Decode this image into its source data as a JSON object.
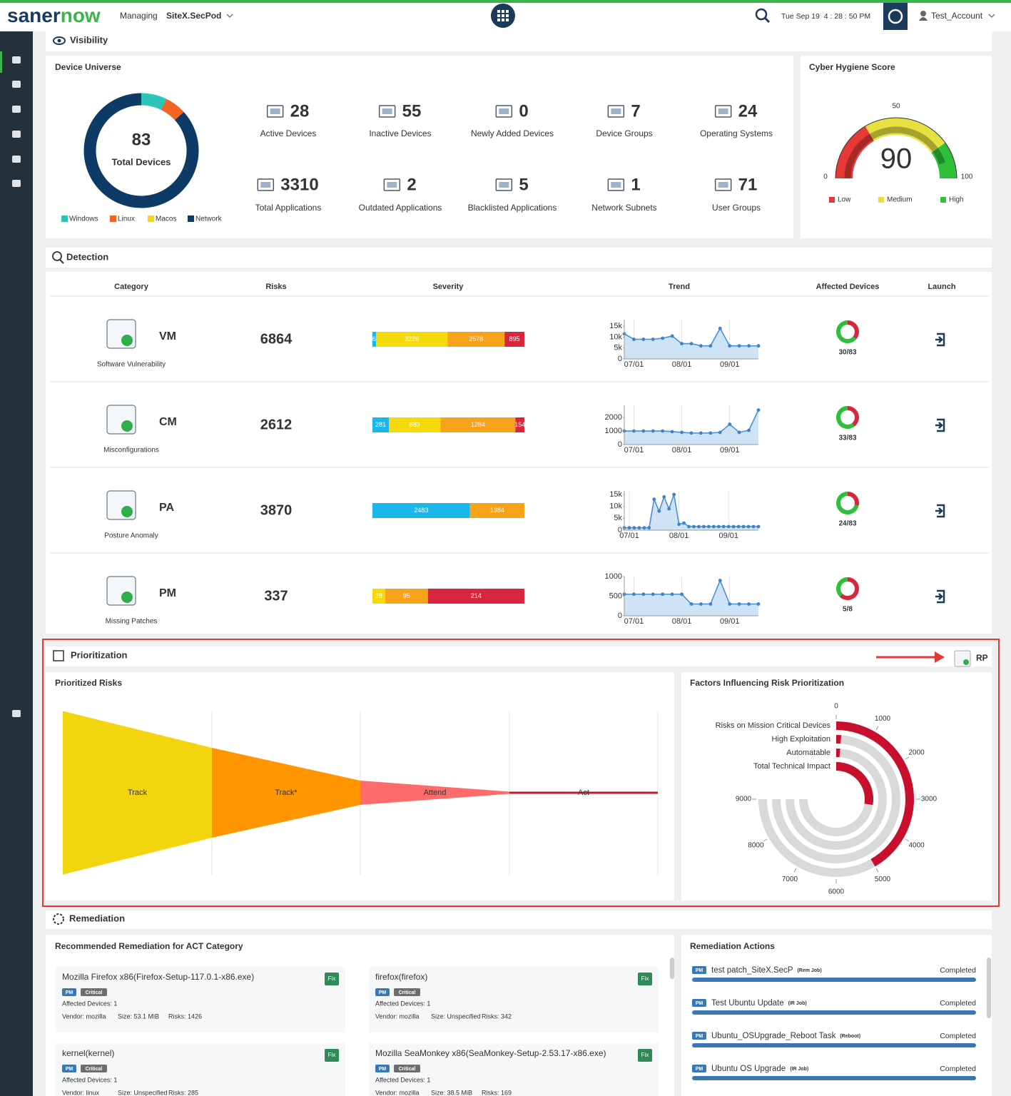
{
  "header": {
    "logo": [
      "saner",
      "now"
    ],
    "managing": "Managing",
    "site": "SiteX.SecPod",
    "datetime": "Tue Sep 19  4 : 28 : 50 PM",
    "account": "Test_Account"
  },
  "visibility": {
    "title": "Visibility",
    "device_universe": {
      "title": "Device Universe",
      "type": "donut",
      "total": 83,
      "total_label": "Total Devices",
      "series": [
        {
          "name": "Windows",
          "color": "#2ec4b6",
          "value": 6
        },
        {
          "name": "Linux",
          "color": "#f26522",
          "value": 5
        },
        {
          "name": "Macos",
          "color": "#f5d327",
          "value": 0
        },
        {
          "name": "Network",
          "color": "#0d3b66",
          "value": 72
        }
      ]
    },
    "stats": [
      {
        "value": 28,
        "label": "Active Devices"
      },
      {
        "value": 55,
        "label": "Inactive Devices"
      },
      {
        "value": 0,
        "label": "Newly Added Devices"
      },
      {
        "value": 7,
        "label": "Device Groups"
      },
      {
        "value": 24,
        "label": "Operating Systems"
      },
      {
        "value": 3310,
        "label": "Total Applications"
      },
      {
        "value": 2,
        "label": "Outdated Applications"
      },
      {
        "value": 5,
        "label": "Blacklisted Applications"
      },
      {
        "value": 1,
        "label": "Network Subnets"
      },
      {
        "value": 71,
        "label": "User Groups"
      }
    ],
    "cyber_hygiene": {
      "title": "Cyber Hygiene Score",
      "type": "gauge",
      "value": 90,
      "ylim": [
        0,
        100
      ],
      "yticks": [
        0,
        50,
        100
      ],
      "bands": [
        {
          "name": "Low",
          "color": "#e53935",
          "to": 33
        },
        {
          "name": "Medium",
          "color": "#e6e040",
          "to": 80
        },
        {
          "name": "High",
          "color": "#2fbf3a",
          "to": 100
        }
      ]
    }
  },
  "detection": {
    "title": "Detection",
    "columns": [
      "Category",
      "Risks",
      "Severity",
      "Trend",
      "Affected Devices",
      "Launch"
    ],
    "rows": [
      {
        "code": "VM",
        "name": "Software Vulnerability",
        "risks": 6864,
        "severity": {
          "type": "stacked-bar",
          "segments": [
            {
              "value": 165,
              "color": "#1ab7ea"
            },
            {
              "value": 3226,
              "color": "#f5d90a"
            },
            {
              "value": 2578,
              "color": "#f7a21b"
            },
            {
              "value": 895,
              "color": "#d7263d"
            }
          ]
        },
        "trend": {
          "type": "area",
          "categories": [
            null,
            "07/01",
            null,
            null,
            null,
            null,
            "08/01",
            null,
            null,
            null,
            null,
            "09/01",
            null,
            null,
            null
          ],
          "values": [
            11500,
            9000,
            9000,
            9000,
            9500,
            10500,
            7000,
            7000,
            6000,
            6000,
            14000,
            6000,
            6000,
            6000,
            6000
          ],
          "ylim": [
            0,
            18000
          ],
          "yticks": [
            0,
            {
              "value": 5000,
              "label": "5k"
            },
            {
              "value": 10000,
              "label": "10k"
            },
            {
              "value": 15000,
              "label": "15k"
            }
          ]
        },
        "affected": {
          "type": "donut",
          "value": 30,
          "total": 83,
          "label": "30/83"
        }
      },
      {
        "code": "CM",
        "name": "Misconfigurations",
        "risks": 2612,
        "severity": {
          "type": "stacked-bar",
          "segments": [
            {
              "value": 281,
              "color": "#1ab7ea"
            },
            {
              "value": 883,
              "color": "#f5d90a"
            },
            {
              "value": 1284,
              "color": "#f7a21b"
            },
            {
              "value": 154,
              "color": "#d7263d"
            }
          ]
        },
        "trend": {
          "type": "area",
          "categories": [
            null,
            "07/01",
            null,
            null,
            null,
            null,
            "08/01",
            null,
            null,
            null,
            null,
            "09/01",
            null,
            null,
            null
          ],
          "values": [
            1000,
            1000,
            1000,
            1000,
            1000,
            950,
            900,
            850,
            850,
            850,
            900,
            1500,
            900,
            1050,
            2550
          ],
          "ylim": [
            0,
            2900
          ],
          "yticks": [
            0,
            1000,
            2000
          ]
        },
        "affected": {
          "type": "donut",
          "value": 33,
          "total": 83,
          "label": "33/83"
        }
      },
      {
        "code": "PA",
        "name": "Posture Anomaly",
        "risks": 3870,
        "severity": {
          "type": "stacked-bar",
          "segments": [
            {
              "value": 2483,
              "color": "#1ab7ea"
            },
            {
              "value": 1384,
              "color": "#f7a21b"
            }
          ]
        },
        "trend": {
          "type": "area",
          "categories": [
            null,
            "07/01",
            null,
            null,
            null,
            null,
            null,
            null,
            null,
            null,
            null,
            "08/01",
            null,
            null,
            null,
            null,
            null,
            null,
            null,
            null,
            null,
            "09/01",
            null,
            null,
            null,
            null,
            null,
            null
          ],
          "values": [
            1000,
            1000,
            1000,
            1000,
            1000,
            1000,
            13000,
            8000,
            14000,
            9000,
            15000,
            2500,
            3000,
            1500,
            1500,
            1500,
            1500,
            1500,
            1500,
            1500,
            1500,
            1500,
            1500,
            1500,
            1500,
            1500,
            1500,
            1500
          ],
          "ylim": [
            0,
            16500
          ],
          "yticks": [
            0,
            {
              "value": 5000,
              "label": "5k"
            },
            {
              "value": 10000,
              "label": "10k"
            },
            {
              "value": 15000,
              "label": "15k"
            }
          ]
        },
        "affected": {
          "type": "donut",
          "value": 24,
          "total": 83,
          "label": "24/83"
        }
      },
      {
        "code": "PM",
        "name": "Missing Patches",
        "risks": 337,
        "severity": {
          "type": "stacked-bar",
          "segments": [
            {
              "value": 28,
              "color": "#f5d90a"
            },
            {
              "value": 95,
              "color": "#f7a21b"
            },
            {
              "value": 214,
              "color": "#d7263d"
            }
          ]
        },
        "trend": {
          "type": "area",
          "categories": [
            null,
            "07/01",
            null,
            null,
            null,
            null,
            "08/01",
            null,
            null,
            null,
            null,
            "09/01",
            null,
            null,
            null
          ],
          "values": [
            550,
            550,
            550,
            550,
            550,
            550,
            550,
            300,
            300,
            300,
            900,
            300,
            300,
            300,
            300
          ],
          "ylim": [
            0,
            1000
          ],
          "yticks": [
            0,
            500,
            1000
          ]
        },
        "affected": {
          "type": "donut",
          "value": 5,
          "total": 8,
          "label": "5/8"
        }
      }
    ]
  },
  "prioritization": {
    "title": "Prioritization",
    "rp": "RP",
    "prioritized_risks": {
      "title": "Prioritized Risks",
      "type": "funnel",
      "categories": [
        "Track",
        "Track*",
        "Attend",
        "Act"
      ],
      "values": [
        6000,
        3300,
        890,
        80
      ],
      "colors": [
        "#f2d40f",
        "#ff9500",
        "#ff6b6b",
        "#c0192d"
      ]
    },
    "factors": {
      "title": "Factors Influencing Risk Prioritization",
      "type": "radial-bar",
      "color": "#c8102e",
      "categories": [
        "Risks on Mission Critical Devices",
        "High Exploitation",
        "Automatable",
        "Total Technical Impact"
      ],
      "values": [
        5000,
        150,
        150,
        3300
      ],
      "xlim": [
        0,
        12000
      ],
      "xticks": [
        0,
        1000,
        2000,
        3000,
        4000,
        5000,
        6000,
        7000,
        8000,
        9000
      ]
    }
  },
  "remediation": {
    "title": "Remediation",
    "recommended": {
      "title": "Recommended Remediation for ACT Category",
      "items": [
        {
          "name": "Mozilla Firefox x86(Firefox-Setup-117.0.1-x86.exe)",
          "tags": [
            "PM",
            "Critical"
          ],
          "affected": "Affected Devices: 1",
          "vendor": "Vendor: mozilla",
          "size": "Size: 53.1 MiB",
          "risks": "Risks: 1426",
          "action": "Fix"
        },
        {
          "name": "firefox(firefox)",
          "tags": [
            "PM",
            "Critical"
          ],
          "affected": "Affected Devices: 1",
          "vendor": "Vendor: mozilla",
          "size": "Size: Unspecified",
          "risks": "Risks: 342",
          "action": "Fix"
        },
        {
          "name": "kernel(kernel)",
          "tags": [
            "PM",
            "Critical"
          ],
          "affected": "Affected Devices: 1",
          "vendor": "Vendor: linux",
          "size": "Size: Unspecified",
          "risks": "Risks: 285",
          "action": "Fix"
        },
        {
          "name": "Mozilla SeaMonkey x86(SeaMonkey-Setup-2.53.17-x86.exe)",
          "tags": [
            "PM",
            "Critical"
          ],
          "affected": "Affected Devices: 1",
          "vendor": "Vendor: mozilla",
          "size": "Size: 38.5 MiB",
          "risks": "Risks: 169",
          "action": "Fix"
        }
      ]
    },
    "actions": {
      "title": "Remediation Actions",
      "items": [
        {
          "tag": "PM",
          "name": "test patch_SiteX.SecP",
          "kind": "(Rem Job)",
          "status": "Completed"
        },
        {
          "tag": "PM",
          "name": "Test Ubuntu Update",
          "kind": "(IR Job)",
          "status": "Completed"
        },
        {
          "tag": "PM",
          "name": "Ubuntu_OSUpgrade_Reboot Task",
          "kind": "(Reboot)",
          "status": "Completed"
        },
        {
          "tag": "PM",
          "name": "Ubuntu OS Upgrade",
          "kind": "(IR Job)",
          "status": "Completed"
        }
      ]
    }
  }
}
